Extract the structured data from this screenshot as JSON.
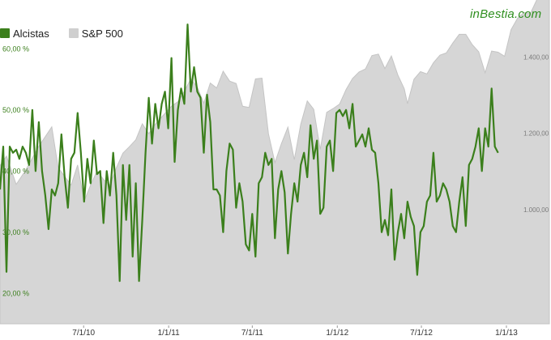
{
  "brand": "inBestia.com",
  "legend": [
    {
      "label": "Alcistas",
      "color": "#3b7f1c"
    },
    {
      "label": "S&P 500",
      "color": "#cfcfcf"
    }
  ],
  "chart_data": {
    "type": "line",
    "title": "",
    "x_tick_labels": [
      "7/1/10",
      "1/1/11",
      "7/1/11",
      "1/1/12",
      "7/1/12",
      "1/1/13"
    ],
    "x_range": [
      "2010-01-01",
      "2013-04-04"
    ],
    "left_axis": {
      "ticks": [
        "20,00 %",
        "30,00 %",
        "40,00 %",
        "50,00 %",
        "60,00 %"
      ],
      "range": [
        15,
        68
      ],
      "color": "#3b7f1c"
    },
    "right_axis": {
      "ticks": [
        "1.000,00",
        "1.200,00",
        "1.400,00"
      ],
      "range": [
        700,
        1550
      ],
      "color": "#7a7a7a"
    },
    "grid": false,
    "legend_position": "top-left",
    "series": [
      {
        "name": "S&P 500",
        "style": "area",
        "color": "#cfcfcf",
        "axis": "right",
        "points": [
          [
            "2010-01-01",
            1115
          ],
          [
            "2010-01-15",
            1140
          ],
          [
            "2010-02-05",
            1066
          ],
          [
            "2010-02-26",
            1104
          ],
          [
            "2010-03-26",
            1166
          ],
          [
            "2010-04-23",
            1217
          ],
          [
            "2010-05-07",
            1110
          ],
          [
            "2010-05-21",
            1087
          ],
          [
            "2010-06-04",
            1064
          ],
          [
            "2010-06-18",
            1117
          ],
          [
            "2010-07-02",
            1022
          ],
          [
            "2010-07-16",
            1064
          ],
          [
            "2010-07-30",
            1101
          ],
          [
            "2010-08-13",
            1079
          ],
          [
            "2010-08-27",
            1064
          ],
          [
            "2010-09-10",
            1110
          ],
          [
            "2010-09-24",
            1148
          ],
          [
            "2010-10-08",
            1165
          ],
          [
            "2010-10-22",
            1183
          ],
          [
            "2010-11-05",
            1225
          ],
          [
            "2010-11-19",
            1199
          ],
          [
            "2010-12-03",
            1224
          ],
          [
            "2010-12-17",
            1243
          ],
          [
            "2011-01-07",
            1271
          ],
          [
            "2011-01-21",
            1283
          ],
          [
            "2011-02-04",
            1310
          ],
          [
            "2011-02-18",
            1343
          ],
          [
            "2011-03-04",
            1321
          ],
          [
            "2011-03-18",
            1279
          ],
          [
            "2011-04-01",
            1332
          ],
          [
            "2011-04-15",
            1319
          ],
          [
            "2011-04-29",
            1363
          ],
          [
            "2011-05-13",
            1337
          ],
          [
            "2011-05-27",
            1331
          ],
          [
            "2011-06-10",
            1271
          ],
          [
            "2011-06-24",
            1268
          ],
          [
            "2011-07-08",
            1343
          ],
          [
            "2011-07-22",
            1345
          ],
          [
            "2011-08-05",
            1199
          ],
          [
            "2011-08-19",
            1123
          ],
          [
            "2011-09-02",
            1173
          ],
          [
            "2011-09-16",
            1216
          ],
          [
            "2011-09-30",
            1131
          ],
          [
            "2011-10-14",
            1224
          ],
          [
            "2011-10-28",
            1285
          ],
          [
            "2011-11-11",
            1263
          ],
          [
            "2011-11-25",
            1158
          ],
          [
            "2011-12-09",
            1255
          ],
          [
            "2011-12-23",
            1265
          ],
          [
            "2012-01-06",
            1277
          ],
          [
            "2012-01-20",
            1315
          ],
          [
            "2012-02-03",
            1344
          ],
          [
            "2012-02-17",
            1361
          ],
          [
            "2012-03-02",
            1369
          ],
          [
            "2012-03-16",
            1404
          ],
          [
            "2012-03-30",
            1408
          ],
          [
            "2012-04-13",
            1370
          ],
          [
            "2012-04-27",
            1403
          ],
          [
            "2012-05-11",
            1353
          ],
          [
            "2012-05-25",
            1317
          ],
          [
            "2012-06-01",
            1278
          ],
          [
            "2012-06-15",
            1342
          ],
          [
            "2012-06-29",
            1362
          ],
          [
            "2012-07-13",
            1356
          ],
          [
            "2012-07-27",
            1385
          ],
          [
            "2012-08-10",
            1405
          ],
          [
            "2012-08-24",
            1411
          ],
          [
            "2012-09-07",
            1437
          ],
          [
            "2012-09-21",
            1460
          ],
          [
            "2012-10-05",
            1460
          ],
          [
            "2012-10-19",
            1433
          ],
          [
            "2012-11-02",
            1414
          ],
          [
            "2012-11-16",
            1359
          ],
          [
            "2012-11-30",
            1416
          ],
          [
            "2012-12-14",
            1413
          ],
          [
            "2012-12-28",
            1402
          ],
          [
            "2013-01-11",
            1472
          ],
          [
            "2013-01-25",
            1502
          ],
          [
            "2013-02-08",
            1517
          ],
          [
            "2013-02-22",
            1515
          ],
          [
            "2013-03-08",
            1551
          ],
          [
            "2013-03-22",
            1556
          ],
          [
            "2013-04-04",
            1559
          ]
        ]
      },
      {
        "name": "Alcistas",
        "style": "line",
        "color": "#3b7f1c",
        "axis": "left",
        "points": [
          [
            "2010-01-01",
            37
          ],
          [
            "2010-01-08",
            44
          ],
          [
            "2010-01-15",
            23.5
          ],
          [
            "2010-01-22",
            44
          ],
          [
            "2010-01-29",
            43
          ],
          [
            "2010-02-05",
            43.5
          ],
          [
            "2010-02-12",
            42
          ],
          [
            "2010-02-19",
            44
          ],
          [
            "2010-02-26",
            43
          ],
          [
            "2010-03-05",
            41
          ],
          [
            "2010-03-12",
            50
          ],
          [
            "2010-03-19",
            40
          ],
          [
            "2010-03-26",
            48
          ],
          [
            "2010-04-02",
            40
          ],
          [
            "2010-04-09",
            36
          ],
          [
            "2010-04-16",
            30.5
          ],
          [
            "2010-04-23",
            37
          ],
          [
            "2010-04-30",
            36
          ],
          [
            "2010-05-07",
            38
          ],
          [
            "2010-05-14",
            46
          ],
          [
            "2010-05-21",
            39
          ],
          [
            "2010-05-28",
            34
          ],
          [
            "2010-06-04",
            42
          ],
          [
            "2010-06-11",
            43
          ],
          [
            "2010-06-18",
            49.5
          ],
          [
            "2010-06-25",
            43
          ],
          [
            "2010-07-02",
            35
          ],
          [
            "2010-07-09",
            42
          ],
          [
            "2010-07-16",
            38
          ],
          [
            "2010-07-23",
            45
          ],
          [
            "2010-07-30",
            39.5
          ],
          [
            "2010-08-06",
            40
          ],
          [
            "2010-08-13",
            31.5
          ],
          [
            "2010-08-20",
            40
          ],
          [
            "2010-08-27",
            36
          ],
          [
            "2010-09-03",
            43
          ],
          [
            "2010-09-10",
            36
          ],
          [
            "2010-09-17",
            22
          ],
          [
            "2010-09-24",
            41
          ],
          [
            "2010-10-01",
            32
          ],
          [
            "2010-10-08",
            41
          ],
          [
            "2010-10-15",
            26
          ],
          [
            "2010-10-22",
            38
          ],
          [
            "2010-10-29",
            22
          ],
          [
            "2010-11-05",
            32
          ],
          [
            "2010-11-12",
            43
          ],
          [
            "2010-11-19",
            52
          ],
          [
            "2010-11-26",
            44.5
          ],
          [
            "2010-12-03",
            51
          ],
          [
            "2010-12-10",
            47
          ],
          [
            "2010-12-17",
            51
          ],
          [
            "2010-12-24",
            53
          ],
          [
            "2010-12-31",
            47
          ],
          [
            "2011-01-07",
            58.5
          ],
          [
            "2011-01-14",
            41.5
          ],
          [
            "2011-01-21",
            50
          ],
          [
            "2011-01-28",
            53.5
          ],
          [
            "2011-02-04",
            51
          ],
          [
            "2011-02-11",
            64
          ],
          [
            "2011-02-18",
            53
          ],
          [
            "2011-02-25",
            57
          ],
          [
            "2011-03-04",
            53
          ],
          [
            "2011-03-11",
            52
          ],
          [
            "2011-03-18",
            43
          ],
          [
            "2011-03-25",
            52.5
          ],
          [
            "2011-04-01",
            48
          ],
          [
            "2011-04-08",
            37
          ],
          [
            "2011-04-15",
            37
          ],
          [
            "2011-04-22",
            36
          ],
          [
            "2011-04-29",
            30
          ],
          [
            "2011-05-06",
            40
          ],
          [
            "2011-05-13",
            44.5
          ],
          [
            "2011-05-20",
            43.5
          ],
          [
            "2011-05-27",
            34
          ],
          [
            "2011-06-03",
            38
          ],
          [
            "2011-06-10",
            35
          ],
          [
            "2011-06-17",
            28
          ],
          [
            "2011-06-24",
            27
          ],
          [
            "2011-07-01",
            33
          ],
          [
            "2011-07-08",
            26
          ],
          [
            "2011-07-15",
            38
          ],
          [
            "2011-07-22",
            39
          ],
          [
            "2011-07-29",
            43
          ],
          [
            "2011-08-05",
            41
          ],
          [
            "2011-08-12",
            42
          ],
          [
            "2011-08-19",
            29
          ],
          [
            "2011-08-26",
            37
          ],
          [
            "2011-09-02",
            40
          ],
          [
            "2011-09-09",
            36.5
          ],
          [
            "2011-09-16",
            26.5
          ],
          [
            "2011-09-23",
            33
          ],
          [
            "2011-09-30",
            38
          ],
          [
            "2011-10-07",
            35
          ],
          [
            "2011-10-14",
            41
          ],
          [
            "2011-10-21",
            43
          ],
          [
            "2011-10-28",
            39
          ],
          [
            "2011-11-04",
            47.5
          ],
          [
            "2011-11-11",
            42
          ],
          [
            "2011-11-18",
            45
          ],
          [
            "2011-11-25",
            33
          ],
          [
            "2011-12-02",
            34
          ],
          [
            "2011-12-09",
            44
          ],
          [
            "2011-12-16",
            45
          ],
          [
            "2011-12-23",
            40
          ],
          [
            "2011-12-30",
            49.5
          ],
          [
            "2012-01-06",
            50
          ],
          [
            "2012-01-13",
            49
          ],
          [
            "2012-01-20",
            50
          ],
          [
            "2012-01-27",
            47
          ],
          [
            "2012-02-03",
            51
          ],
          [
            "2012-02-10",
            44
          ],
          [
            "2012-02-17",
            45
          ],
          [
            "2012-02-24",
            46
          ],
          [
            "2012-03-02",
            44
          ],
          [
            "2012-03-09",
            47
          ],
          [
            "2012-03-16",
            43.5
          ],
          [
            "2012-03-23",
            43
          ],
          [
            "2012-03-30",
            38
          ],
          [
            "2012-04-06",
            30
          ],
          [
            "2012-04-13",
            32
          ],
          [
            "2012-04-20",
            29.5
          ],
          [
            "2012-04-27",
            37
          ],
          [
            "2012-05-04",
            25.5
          ],
          [
            "2012-05-11",
            30
          ],
          [
            "2012-05-18",
            33
          ],
          [
            "2012-05-25",
            29
          ],
          [
            "2012-06-01",
            35
          ],
          [
            "2012-06-08",
            32.5
          ],
          [
            "2012-06-15",
            31
          ],
          [
            "2012-06-22",
            23
          ],
          [
            "2012-06-29",
            30
          ],
          [
            "2012-07-06",
            31
          ],
          [
            "2012-07-13",
            35
          ],
          [
            "2012-07-20",
            36
          ],
          [
            "2012-07-27",
            43
          ],
          [
            "2012-08-03",
            35
          ],
          [
            "2012-08-10",
            36
          ],
          [
            "2012-08-17",
            38
          ],
          [
            "2012-08-24",
            37
          ],
          [
            "2012-08-31",
            35
          ],
          [
            "2012-09-07",
            31
          ],
          [
            "2012-09-14",
            30
          ],
          [
            "2012-09-21",
            35
          ],
          [
            "2012-09-28",
            39
          ],
          [
            "2012-10-05",
            31
          ],
          [
            "2012-10-12",
            41
          ],
          [
            "2012-10-19",
            42
          ],
          [
            "2012-10-26",
            44
          ],
          [
            "2012-11-02",
            47
          ],
          [
            "2012-11-09",
            40
          ],
          [
            "2012-11-16",
            47
          ],
          [
            "2012-11-23",
            44
          ],
          [
            "2012-11-30",
            53.5
          ],
          [
            "2012-12-07",
            44
          ],
          [
            "2012-12-14",
            43
          ]
        ]
      }
    ]
  }
}
